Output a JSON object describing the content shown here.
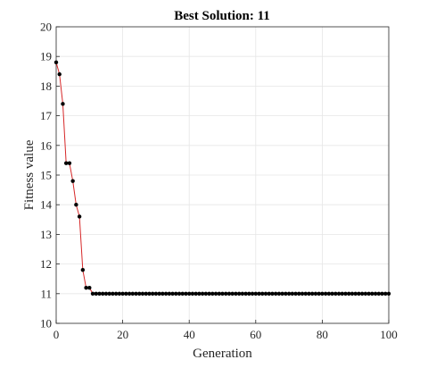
{
  "chart_data": {
    "type": "line",
    "title": "Best Solution: 11",
    "xlabel": "Generation",
    "ylabel": "Fitness value",
    "xlim": [
      0,
      100
    ],
    "ylim": [
      10,
      20
    ],
    "xticks": [
      "0",
      "20",
      "40",
      "60",
      "80",
      "100"
    ],
    "yticks": [
      "10",
      "11",
      "12",
      "13",
      "14",
      "15",
      "16",
      "17",
      "18",
      "19",
      "20"
    ],
    "grid": true,
    "line_color": "#d62728",
    "marker_color": "#000000",
    "series": [
      {
        "x": [
          0,
          1,
          2,
          3,
          4,
          5,
          6,
          7,
          8,
          9,
          10,
          11,
          12,
          13,
          14,
          15,
          16,
          17,
          18,
          19,
          20,
          21,
          22,
          23,
          24,
          25,
          26,
          27,
          28,
          29,
          30,
          31,
          32,
          33,
          34,
          35,
          36,
          37,
          38,
          39,
          40,
          41,
          42,
          43,
          44,
          45,
          46,
          47,
          48,
          49,
          50,
          51,
          52,
          53,
          54,
          55,
          56,
          57,
          58,
          59,
          60,
          61,
          62,
          63,
          64,
          65,
          66,
          67,
          68,
          69,
          70,
          71,
          72,
          73,
          74,
          75,
          76,
          77,
          78,
          79,
          80,
          81,
          82,
          83,
          84,
          85,
          86,
          87,
          88,
          89,
          90,
          91,
          92,
          93,
          94,
          95,
          96,
          97,
          98,
          99,
          100
        ],
        "y": [
          18.8,
          18.4,
          17.4,
          15.4,
          15.4,
          14.8,
          14.0,
          13.6,
          11.8,
          11.2,
          11.2,
          11,
          11,
          11,
          11,
          11,
          11,
          11,
          11,
          11,
          11,
          11,
          11,
          11,
          11,
          11,
          11,
          11,
          11,
          11,
          11,
          11,
          11,
          11,
          11,
          11,
          11,
          11,
          11,
          11,
          11,
          11,
          11,
          11,
          11,
          11,
          11,
          11,
          11,
          11,
          11,
          11,
          11,
          11,
          11,
          11,
          11,
          11,
          11,
          11,
          11,
          11,
          11,
          11,
          11,
          11,
          11,
          11,
          11,
          11,
          11,
          11,
          11,
          11,
          11,
          11,
          11,
          11,
          11,
          11,
          11,
          11,
          11,
          11,
          11,
          11,
          11,
          11,
          11,
          11,
          11,
          11,
          11,
          11,
          11,
          11,
          11,
          11,
          11,
          11,
          11
        ]
      }
    ]
  }
}
